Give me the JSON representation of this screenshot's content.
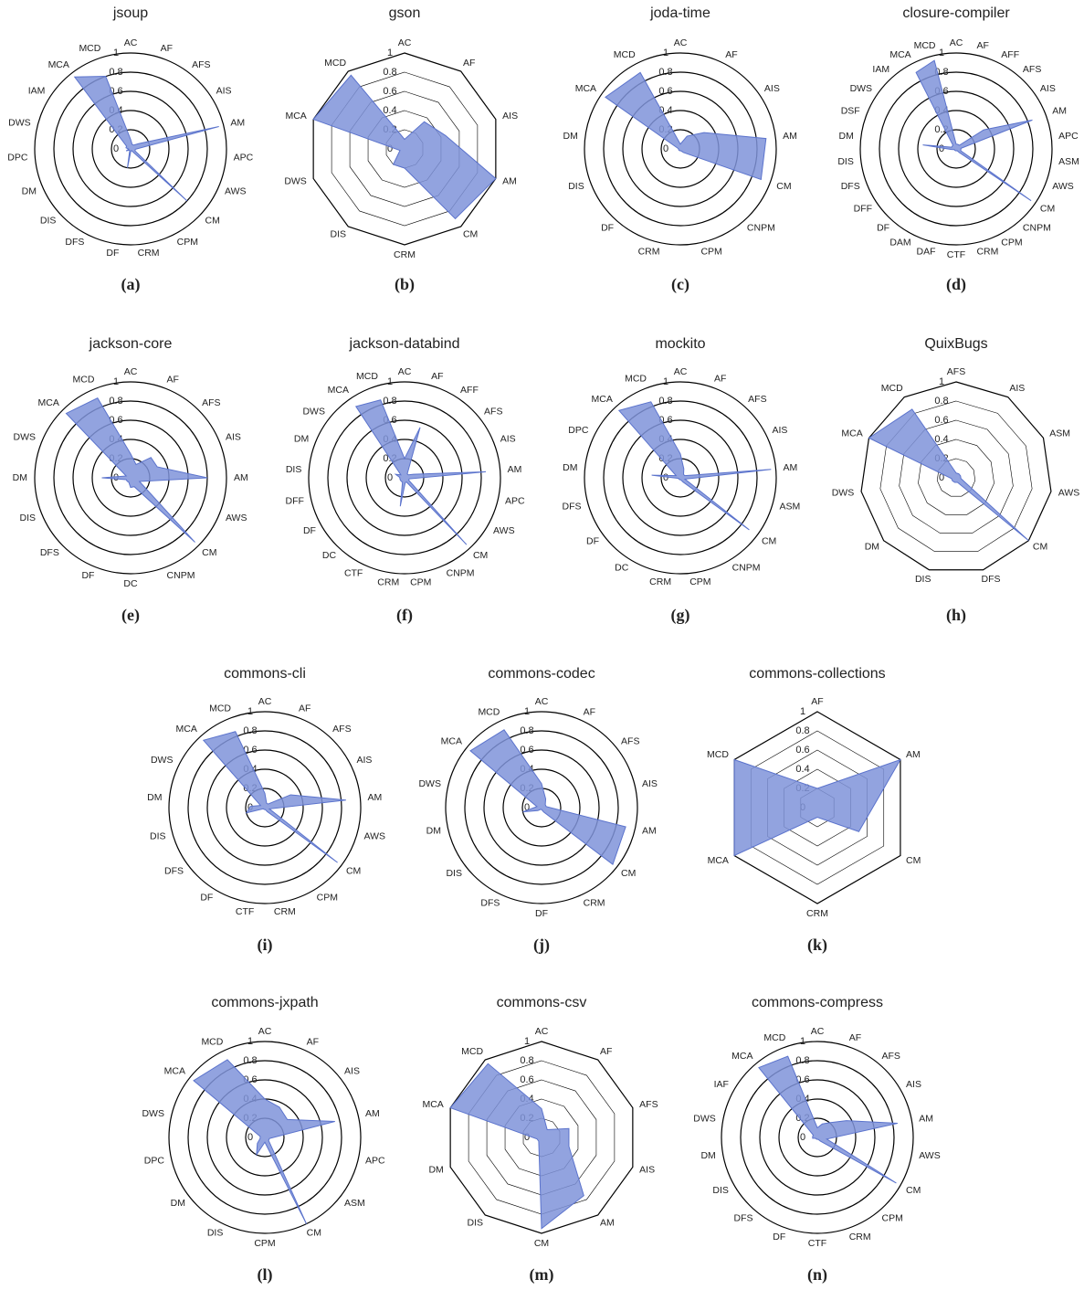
{
  "chart_data": [
    {
      "type": "radar",
      "title": "jsoup",
      "label": "(a)",
      "grid_shape": "circle",
      "color": "#7f93d9",
      "categories": [
        "AC",
        "AF",
        "AFS",
        "AIS",
        "AM",
        "APC",
        "AWS",
        "CM",
        "CPM",
        "CRM",
        "DF",
        "DFS",
        "DIS",
        "DM",
        "DPC",
        "DWS",
        "IAM",
        "MCA",
        "MCD"
      ],
      "values": [
        0.1,
        0.05,
        0.05,
        0.1,
        0.95,
        0.05,
        0.05,
        0.8,
        0.02,
        0.02,
        0.2,
        0.02,
        0.02,
        0.05,
        0.02,
        0.05,
        0.05,
        0.95,
        0.8
      ],
      "ylim": [
        0,
        1
      ],
      "yticks": [
        0,
        0.2,
        0.4,
        0.6,
        0.8,
        1
      ]
    },
    {
      "type": "radar",
      "title": "gson",
      "label": "(b)",
      "grid_shape": "polygon",
      "color": "#7f93d9",
      "categories": [
        "AC",
        "AF",
        "AIS",
        "AM",
        "CM",
        "CRM",
        "DIS",
        "DWS",
        "MCA",
        "MCD"
      ],
      "values": [
        0.1,
        0.35,
        0.45,
        1,
        0.9,
        0.2,
        0.2,
        0.05,
        1,
        0.95
      ],
      "ylim": [
        0,
        1
      ],
      "yticks": [
        0,
        0.2,
        0.4,
        0.6,
        0.8,
        1
      ]
    },
    {
      "type": "radar",
      "title": "joda-time",
      "label": "(c)",
      "grid_shape": "circle",
      "color": "#7f93d9",
      "categories": [
        "AC",
        "AF",
        "AIS",
        "AM",
        "CM",
        "CNPM",
        "CPM",
        "CRM",
        "DF",
        "DIS",
        "DM",
        "MCA",
        "MCD"
      ],
      "values": [
        0.05,
        0.15,
        0.3,
        0.9,
        0.9,
        0.05,
        0.02,
        0.02,
        0.02,
        0.02,
        0.02,
        0.95,
        0.9
      ],
      "ylim": [
        0,
        1
      ],
      "yticks": [
        0,
        0.2,
        0.4,
        0.6,
        0.8,
        1
      ]
    },
    {
      "type": "radar",
      "title": "closure-compiler",
      "label": "(d)",
      "grid_shape": "circle",
      "color": "#7f93d9",
      "categories": [
        "AC",
        "AF",
        "AFF",
        "AFS",
        "AIS",
        "AM",
        "APC",
        "ASM",
        "AWS",
        "CM",
        "CNPM",
        "CPM",
        "CRM",
        "CTF",
        "DAF",
        "DAM",
        "DF",
        "DFF",
        "DFS",
        "DIS",
        "DM",
        "DSF",
        "DWS",
        "IAM",
        "MCA",
        "MCD"
      ],
      "values": [
        0.05,
        0.05,
        0.05,
        0.05,
        0.35,
        0.85,
        0.05,
        0.05,
        0.05,
        0.95,
        0.05,
        0.02,
        0.02,
        0.02,
        0.02,
        0.02,
        0.02,
        0.02,
        0.02,
        0.05,
        0.35,
        0.05,
        0.05,
        0.05,
        0.9,
        0.95
      ],
      "ylim": [
        0,
        1
      ],
      "yticks": [
        0,
        0.2,
        0.4,
        0.6,
        0.8,
        1
      ]
    },
    {
      "type": "radar",
      "title": "jackson-core",
      "label": "(e)",
      "grid_shape": "circle",
      "color": "#7f93d9",
      "categories": [
        "AC",
        "AF",
        "AFS",
        "AIS",
        "AM",
        "AWS",
        "CM",
        "CNPM",
        "DC",
        "DF",
        "DFS",
        "DIS",
        "DM",
        "DWS",
        "MCA",
        "MCD"
      ],
      "values": [
        0.25,
        0.15,
        0.3,
        0.3,
        0.8,
        0.1,
        0.95,
        0.1,
        0.1,
        0.05,
        0.05,
        0.05,
        0.3,
        0.05,
        0.95,
        0.9
      ],
      "ylim": [
        0,
        1
      ],
      "yticks": [
        0,
        0.2,
        0.4,
        0.6,
        0.8,
        1
      ]
    },
    {
      "type": "radar",
      "title": "jackson-databind",
      "label": "(f)",
      "grid_shape": "circle",
      "color": "#7f93d9",
      "categories": [
        "AC",
        "AF",
        "AFF",
        "AFS",
        "AIS",
        "AM",
        "APC",
        "AWS",
        "CM",
        "CNPM",
        "CPM",
        "CRM",
        "CTF",
        "DC",
        "DF",
        "DFF",
        "DIS",
        "DM",
        "DWS",
        "MCA",
        "MCD"
      ],
      "values": [
        0.2,
        0.55,
        0.05,
        0.05,
        0.1,
        0.85,
        0.05,
        0.05,
        0.95,
        0.05,
        0.05,
        0.3,
        0.05,
        0.05,
        0.05,
        0.05,
        0.05,
        0.1,
        0.05,
        0.9,
        0.85
      ],
      "ylim": [
        0,
        1
      ],
      "yticks": [
        0,
        0.2,
        0.4,
        0.6,
        0.8,
        1
      ]
    },
    {
      "type": "radar",
      "title": "mockito",
      "label": "(g)",
      "grid_shape": "circle",
      "color": "#7f93d9",
      "categories": [
        "AC",
        "AF",
        "AFS",
        "AIS",
        "AM",
        "ASM",
        "CM",
        "CNPM",
        "CPM",
        "CRM",
        "DC",
        "DF",
        "DFS",
        "DM",
        "DPC",
        "MCA",
        "MCD"
      ],
      "values": [
        0.25,
        0.1,
        0.05,
        0.05,
        0.95,
        0.05,
        0.9,
        0.05,
        0.02,
        0.02,
        0.02,
        0.02,
        0.02,
        0.3,
        0.05,
        0.95,
        0.85
      ],
      "ylim": [
        0,
        1
      ],
      "yticks": [
        0,
        0.2,
        0.4,
        0.6,
        0.8,
        1
      ]
    },
    {
      "type": "radar",
      "title": "QuixBugs",
      "label": "(h)",
      "grid_shape": "polygon",
      "color": "#7f93d9",
      "categories": [
        "AFS",
        "AIS",
        "ASM",
        "AWS",
        "CM",
        "DFS",
        "DIS",
        "DM",
        "DWS",
        "MCA",
        "MCD"
      ],
      "values": [
        0.05,
        0.05,
        0.05,
        0.05,
        1,
        0.05,
        0.05,
        0.05,
        0.05,
        1,
        0.85
      ],
      "ylim": [
        0,
        1
      ],
      "yticks": [
        0,
        0.2,
        0.4,
        0.6,
        0.8,
        1
      ]
    },
    {
      "type": "radar",
      "title": "commons-cli",
      "label": "(i)",
      "grid_shape": "circle",
      "color": "#7f93d9",
      "categories": [
        "AC",
        "AF",
        "AFS",
        "AIS",
        "AM",
        "AWS",
        "CM",
        "CPM",
        "CRM",
        "CTF",
        "DF",
        "DFS",
        "DIS",
        "DM",
        "DWS",
        "MCA",
        "MCD"
      ],
      "values": [
        0.15,
        0.05,
        0.05,
        0.3,
        0.85,
        0.05,
        0.95,
        0.05,
        0.02,
        0.02,
        0.02,
        0.02,
        0.2,
        0.15,
        0.05,
        0.95,
        0.85
      ],
      "ylim": [
        0,
        1
      ],
      "yticks": [
        0,
        0.2,
        0.4,
        0.6,
        0.8,
        1
      ]
    },
    {
      "type": "radar",
      "title": "commons-codec",
      "label": "(j)",
      "grid_shape": "circle",
      "color": "#7f93d9",
      "categories": [
        "AC",
        "AF",
        "AFS",
        "AIS",
        "AM",
        "CM",
        "CRM",
        "DF",
        "DFS",
        "DIS",
        "DM",
        "DWS",
        "MCA",
        "MCD"
      ],
      "values": [
        0.25,
        0.1,
        0.05,
        0.05,
        0.9,
        0.95,
        0.05,
        0.02,
        0.02,
        0.05,
        0.2,
        0.05,
        0.95,
        0.9
      ],
      "ylim": [
        0,
        1
      ],
      "yticks": [
        0,
        0.2,
        0.4,
        0.6,
        0.8,
        1
      ]
    },
    {
      "type": "radar",
      "title": "commons-collections",
      "label": "(k)",
      "grid_shape": "polygon",
      "color": "#7f93d9",
      "categories": [
        "AF",
        "AM",
        "CM",
        "CRM",
        "MCA",
        "MCD"
      ],
      "values": [
        0.2,
        1,
        0.5,
        0.1,
        1,
        1
      ],
      "ylim": [
        0,
        1
      ],
      "yticks": [
        0,
        0.2,
        0.4,
        0.6,
        0.8,
        1
      ]
    },
    {
      "type": "radar",
      "title": "commons-jxpath",
      "label": "(l)",
      "grid_shape": "circle",
      "color": "#7f93d9",
      "categories": [
        "AC",
        "AF",
        "AIS",
        "AM",
        "APC",
        "ASM",
        "CM",
        "CPM",
        "DIS",
        "DM",
        "DPC",
        "DWS",
        "MCA",
        "MCD"
      ],
      "values": [
        0.4,
        0.35,
        0.3,
        0.75,
        0.05,
        0.05,
        1,
        0.05,
        0.2,
        0.1,
        0.05,
        0.05,
        0.95,
        0.9
      ],
      "ylim": [
        0,
        1
      ],
      "yticks": [
        0,
        0.2,
        0.4,
        0.6,
        0.8,
        1
      ]
    },
    {
      "type": "radar",
      "title": "commons-csv",
      "label": "(m)",
      "grid_shape": "polygon",
      "color": "#7f93d9",
      "categories": [
        "AC",
        "AF",
        "AFS",
        "AIS",
        "AM",
        "CM",
        "DIS",
        "DM",
        "MCA",
        "MCD"
      ],
      "values": [
        0.3,
        0.1,
        0.3,
        0.3,
        0.75,
        0.95,
        0.05,
        0.05,
        1,
        0.95
      ],
      "ylim": [
        0,
        1
      ],
      "yticks": [
        0,
        0.2,
        0.4,
        0.6,
        0.8,
        1
      ]
    },
    {
      "type": "radar",
      "title": "commons-compress",
      "label": "(n)",
      "grid_shape": "circle",
      "color": "#7f93d9",
      "categories": [
        "AC",
        "AF",
        "AFS",
        "AIS",
        "AM",
        "AWS",
        "CM",
        "CPM",
        "CRM",
        "CTF",
        "DF",
        "DFS",
        "DIS",
        "DM",
        "DWS",
        "IAF",
        "MCA",
        "MCD"
      ],
      "values": [
        0.1,
        0.15,
        0.2,
        0.35,
        0.85,
        0.1,
        0.95,
        0.05,
        0.02,
        0.02,
        0.02,
        0.02,
        0.02,
        0.05,
        0.05,
        0.05,
        0.95,
        0.9
      ],
      "ylim": [
        0,
        1
      ],
      "yticks": [
        0,
        0.2,
        0.4,
        0.6,
        0.8,
        1
      ]
    }
  ]
}
